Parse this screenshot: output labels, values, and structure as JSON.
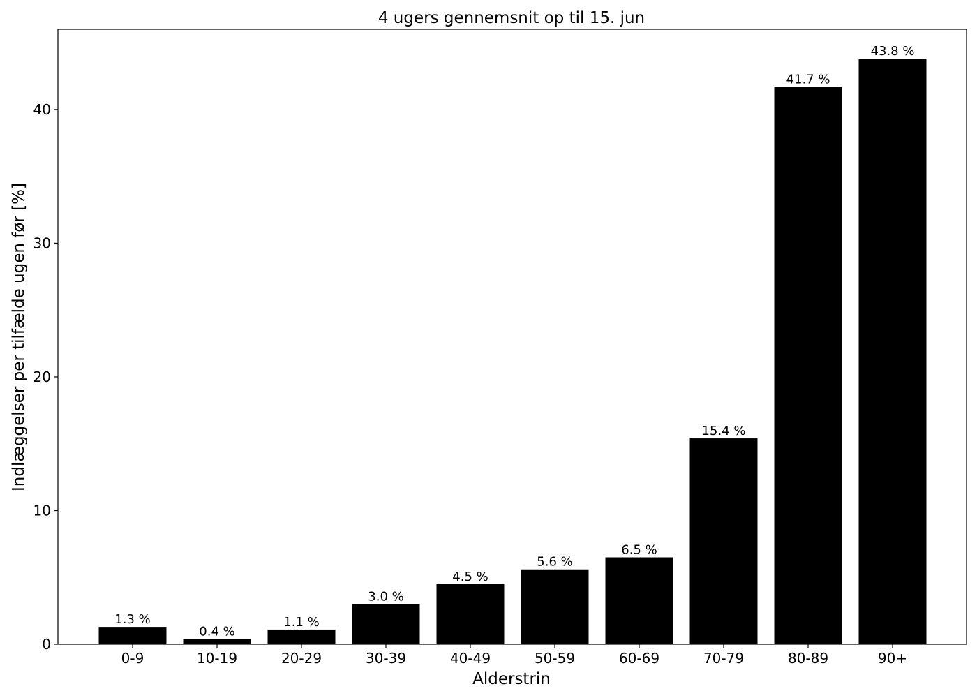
{
  "chart_data": {
    "type": "bar",
    "title": "4 ugers gennemsnit op til 15. jun",
    "xlabel": "Alderstrin",
    "ylabel": "Indlæggelser per tilfælde ugen før [%]",
    "categories": [
      "0-9",
      "10-19",
      "20-29",
      "30-39",
      "40-49",
      "50-59",
      "60-69",
      "70-79",
      "80-89",
      "90+"
    ],
    "values": [
      1.3,
      0.4,
      1.1,
      3.0,
      4.5,
      5.6,
      6.5,
      15.4,
      41.7,
      43.8
    ],
    "value_labels": [
      "1.3 %",
      "0.4 %",
      "1.1 %",
      "3.0 %",
      "4.5 %",
      "5.6 %",
      "6.5 %",
      "15.4 %",
      "41.7 %",
      "43.8 %"
    ],
    "yticks": [
      0,
      10,
      20,
      30,
      40
    ],
    "ytick_labels": [
      "0",
      "10",
      "20",
      "30",
      "40"
    ],
    "ylim": [
      0,
      46
    ],
    "grid": false,
    "bar_color": "#000000"
  }
}
